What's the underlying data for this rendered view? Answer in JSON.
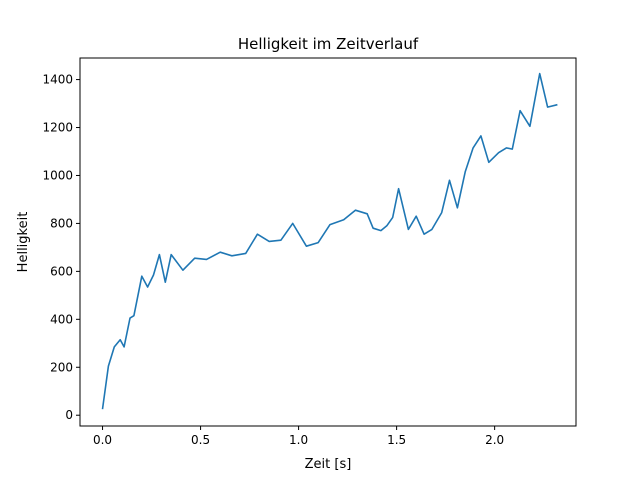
{
  "chart_data": {
    "type": "line",
    "title": "Helligkeit im Zeitverlauf",
    "xlabel": "Zeit [s]",
    "ylabel": "Helligkeit",
    "xlim": [
      -0.115,
      2.415
    ],
    "ylim": [
      -45,
      1490
    ],
    "xticks": [
      0.0,
      0.5,
      1.0,
      1.5,
      2.0
    ],
    "xtick_labels": [
      "0.0",
      "0.5",
      "1.0",
      "1.5",
      "2.0"
    ],
    "yticks": [
      0,
      200,
      400,
      600,
      800,
      1000,
      1200,
      1400
    ],
    "ytick_labels": [
      "0",
      "200",
      "400",
      "600",
      "800",
      "1000",
      "1200",
      "1400"
    ],
    "grid": false,
    "series": [
      {
        "color": "#1f77b4",
        "x": [
          0.0,
          0.03,
          0.06,
          0.09,
          0.11,
          0.14,
          0.16,
          0.2,
          0.23,
          0.26,
          0.29,
          0.32,
          0.35,
          0.41,
          0.47,
          0.53,
          0.6,
          0.66,
          0.73,
          0.79,
          0.85,
          0.91,
          0.97,
          1.04,
          1.1,
          1.16,
          1.23,
          1.29,
          1.35,
          1.38,
          1.42,
          1.45,
          1.48,
          1.51,
          1.56,
          1.6,
          1.64,
          1.68,
          1.73,
          1.77,
          1.81,
          1.85,
          1.89,
          1.93,
          1.97,
          2.02,
          2.06,
          2.09,
          2.13,
          2.18,
          2.23,
          2.27,
          2.32
        ],
        "y": [
          25,
          205,
          285,
          315,
          285,
          405,
          415,
          580,
          535,
          585,
          670,
          555,
          670,
          605,
          655,
          650,
          680,
          665,
          675,
          755,
          725,
          730,
          800,
          705,
          720,
          795,
          815,
          855,
          840,
          780,
          770,
          790,
          825,
          945,
          775,
          830,
          755,
          775,
          845,
          980,
          865,
          1015,
          1115,
          1165,
          1055,
          1095,
          1115,
          1110,
          1270,
          1205,
          1425,
          1285,
          1295
        ]
      }
    ]
  }
}
